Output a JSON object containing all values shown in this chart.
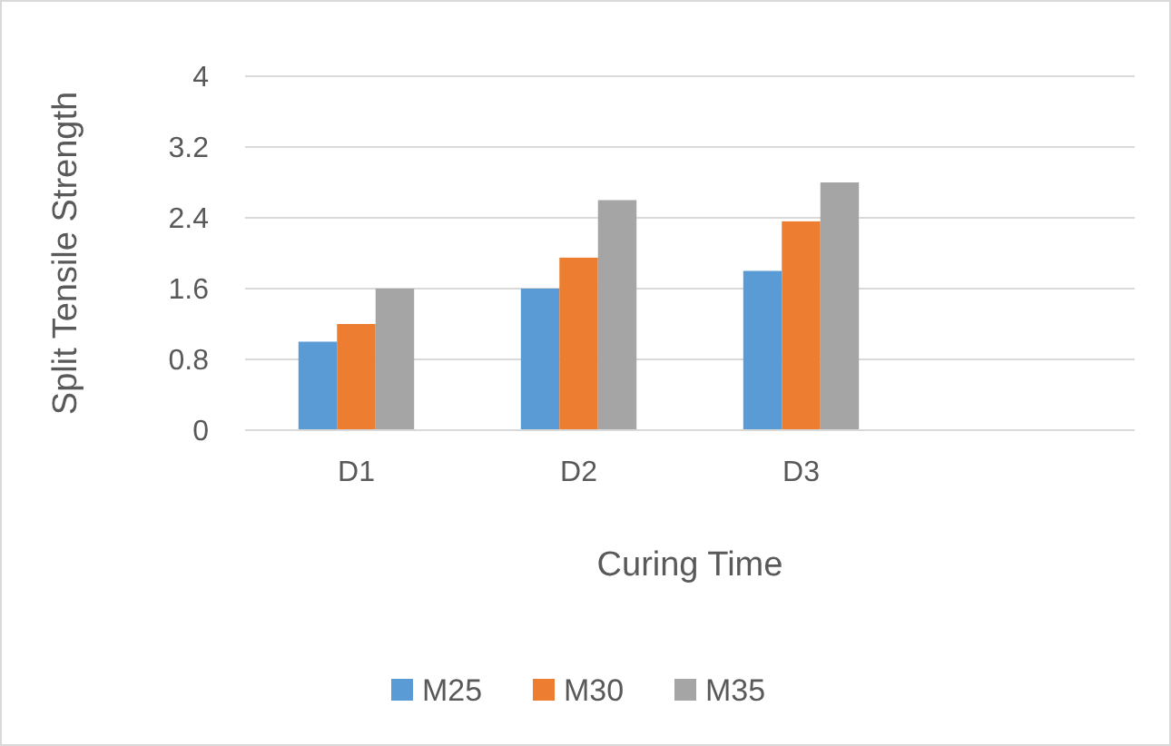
{
  "chart_data": {
    "type": "bar",
    "xlabel": "Curing Time",
    "ylabel": "Split Tensile Strength",
    "categories": [
      "D1",
      "D2",
      "D3",
      null
    ],
    "series": [
      {
        "name": "M25",
        "color": "#5b9bd5",
        "values": [
          1.0,
          1.6,
          1.8,
          null
        ]
      },
      {
        "name": "M30",
        "color": "#ed7d31",
        "values": [
          1.2,
          1.95,
          2.36,
          null
        ]
      },
      {
        "name": "M35",
        "color": "#a5a5a5",
        "values": [
          1.6,
          2.6,
          2.8,
          null
        ]
      }
    ],
    "ylim": [
      0,
      4
    ],
    "yticks": [
      0,
      0.8,
      1.6,
      2.4,
      3.2,
      4
    ],
    "grid": "y",
    "legend": "bottom"
  }
}
